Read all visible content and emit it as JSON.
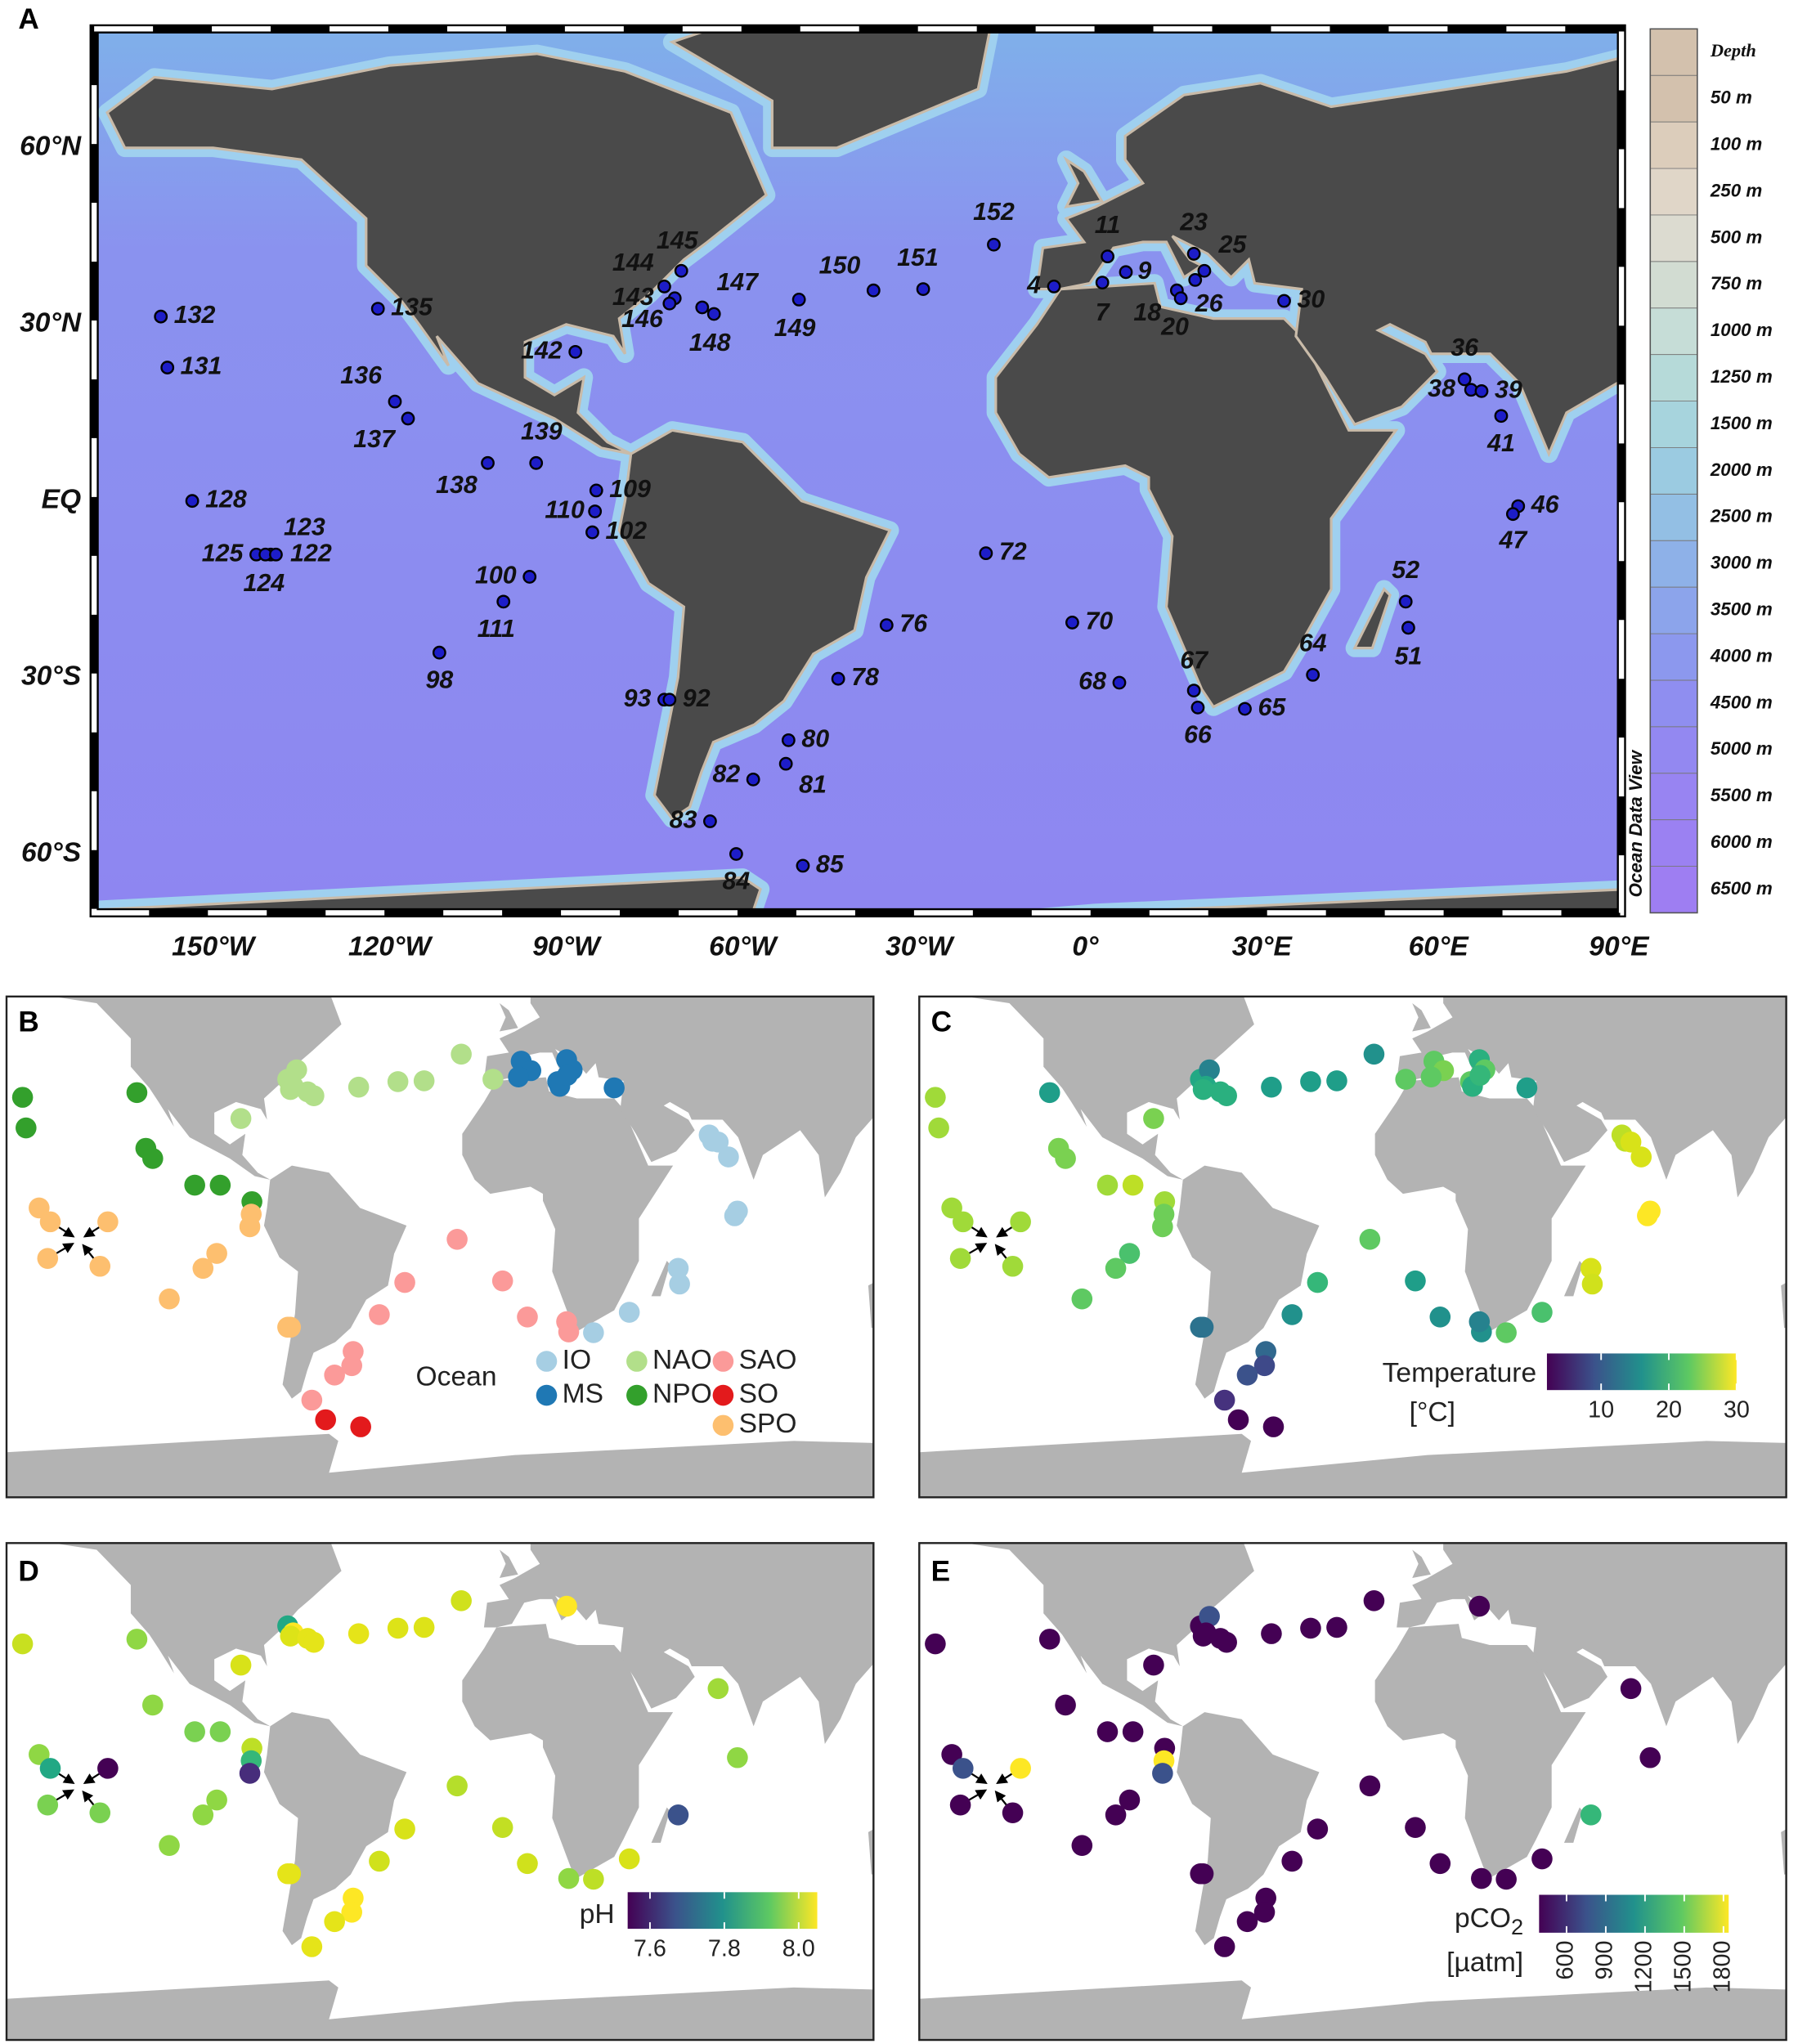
{
  "panel_labels": [
    "A",
    "B",
    "C",
    "D",
    "E"
  ],
  "map_a": {
    "lat_labels": [
      "60°N",
      "30°N",
      "EQ",
      "30°S",
      "60°S"
    ],
    "lon_labels": [
      "150°W",
      "120°W",
      "90°W",
      "60°W",
      "30°W",
      "0°",
      "30°E",
      "60°E",
      "90°E"
    ],
    "credit": "Ocean Data View",
    "depth_legend": {
      "title": "Depth",
      "labels": [
        "50 m",
        "100 m",
        "250 m",
        "500 m",
        "750 m",
        "1000 m",
        "1250 m",
        "1500 m",
        "2000 m",
        "2500 m",
        "3000 m",
        "3500 m",
        "4000 m",
        "4500 m",
        "5000 m",
        "5500 m",
        "6000 m",
        "6500 m"
      ],
      "colors": [
        "#d3c1ad",
        "#dccdbb",
        "#e0d6c8",
        "#dcdbd0",
        "#d2dcd2",
        "#c6ddd7",
        "#b6dad9",
        "#a7d4dd",
        "#9bcbe1",
        "#93bfe4",
        "#8eb1e8",
        "#8ca4eb",
        "#8c98ee",
        "#8f8ef0",
        "#9388f1",
        "#9884f2",
        "#9b81f2",
        "#9e7ef2"
      ]
    }
  },
  "stations": [
    "132",
    "131",
    "135",
    "136",
    "137",
    "142",
    "139",
    "138",
    "128",
    "125",
    "123",
    "124",
    "122",
    "100",
    "111",
    "98",
    "109",
    "110",
    "102",
    "144",
    "145",
    "143",
    "146",
    "147",
    "148",
    "149",
    "150",
    "151",
    "152",
    "4",
    "11",
    "9",
    "7",
    "23",
    "25",
    "18",
    "20",
    "26",
    "30",
    "36",
    "38",
    "39",
    "41",
    "46",
    "47",
    "52",
    "51",
    "64",
    "65",
    "66",
    "67",
    "68",
    "70",
    "72",
    "76",
    "78",
    "80",
    "81",
    "82",
    "83",
    "84",
    "85",
    "93",
    "92"
  ],
  "panel_b": {
    "legend_title": "Ocean",
    "legend": [
      {
        "name": "IO",
        "color": "#a6cee3"
      },
      {
        "name": "MS",
        "color": "#1f78b4"
      },
      {
        "name": "NAO",
        "color": "#b2df8a"
      },
      {
        "name": "NPO",
        "color": "#33a02c"
      },
      {
        "name": "SAO",
        "color": "#fb9a99"
      },
      {
        "name": "SO",
        "color": "#e31a1c"
      },
      {
        "name": "SPO",
        "color": "#fdbf6f"
      }
    ],
    "station_colors": [
      "#33a02c",
      "#33a02c",
      "#33a02c",
      "#33a02c",
      "#33a02c",
      "#b2df8a",
      "#33a02c",
      "#33a02c",
      "#fdbf6f",
      "#fdbf6f",
      "#fdbf6f",
      "#fdbf6f",
      "#fdbf6f",
      "#fdbf6f",
      "#fdbf6f",
      "#fdbf6f",
      "#33a02c",
      "#fdbf6f",
      "#fdbf6f",
      "#b2df8a",
      "#b2df8a",
      "#b2df8a",
      "#b2df8a",
      "#b2df8a",
      "#b2df8a",
      "#b2df8a",
      "#b2df8a",
      "#b2df8a",
      "#b2df8a",
      "#b2df8a",
      "#1f78b4",
      "#1f78b4",
      "#1f78b4",
      "#1f78b4",
      "#1f78b4",
      "#1f78b4",
      "#1f78b4",
      "#1f78b4",
      "#1f78b4",
      "#a6cee3",
      "#a6cee3",
      "#a6cee3",
      "#a6cee3",
      "#a6cee3",
      "#a6cee3",
      "#a6cee3",
      "#a6cee3",
      "#a6cee3",
      "#a6cee3",
      "#fb9a99",
      "#fb9a99",
      "#fb9a99",
      "#fb9a99",
      "#fb9a99",
      "#fb9a99",
      "#fb9a99",
      "#fb9a99",
      "#fb9a99",
      "#fb9a99",
      "#fb9a99",
      "#e31a1c",
      "#e31a1c",
      "#fdbf6f",
      "#fdbf6f"
    ]
  },
  "panel_c": {
    "title": "Temperature",
    "unit": "[°C]",
    "colormap": [
      "#440154",
      "#3b528b",
      "#21918c",
      "#5ec962",
      "#fde725"
    ],
    "lim": [
      2,
      30
    ],
    "ticks": [
      10,
      20,
      30
    ],
    "station_colors": [
      "#a0da39",
      "#a0da39",
      "#1f9e89",
      "#7ad151",
      "#7ad151",
      "#7ad151",
      "#bddf26",
      "#a0da39",
      "#a0da39",
      "#a0da39",
      "#a0da39",
      "#a0da39",
      "#a0da39",
      "#4ac16d",
      "#5ec962",
      "#5ec962",
      "#a0da39",
      "#6ece58",
      "#6ece58",
      "#22a884",
      "#26828e",
      "#22a884",
      "#2ab07f",
      "#2ab07f",
      "#2ab07f",
      "#1f9e89",
      "#1f9e89",
      "#1f9e89",
      "#21918c",
      "#5ec962",
      "#5ec962",
      "#7ad151",
      "#5ec962",
      "#2ab07f",
      "#5ec962",
      "#5ec962",
      "#2ab07f",
      "#35b779",
      "#1f9e89",
      "#bddf26",
      "#bddf26",
      "#d8e219",
      "#d8e219",
      "#fde725",
      "#fde725",
      "#d8e219",
      "#d0e11c",
      "#4ac16d",
      "#5ec962",
      "#21918c",
      "#26828e",
      "#21918c",
      "#1f9e89",
      "#5ec962",
      "#35b779",
      "#21918c",
      "#31688e",
      "#3e4989",
      "#3b528b",
      "#46327e",
      "#440154",
      "#440154",
      "#2c728e",
      "#2c728e"
    ]
  },
  "panel_d": {
    "title": "pH",
    "colormap": [
      "#440154",
      "#3b528b",
      "#21918c",
      "#5ec962",
      "#fde725"
    ],
    "lim": [
      7.54,
      8.05
    ],
    "ticks": [
      7.6,
      7.8,
      {
        "value": 8,
        "label": "8.0"
      }
    ],
    "station_colors": [
      "#c8e020",
      null,
      "#8fd744",
      null,
      "#8fd744",
      "#d8e219",
      "#7ad151",
      "#7ad151",
      "#8fd744",
      "#22a884",
      "#440154",
      "#7ad151",
      "#7ad151",
      "#8fd744",
      "#8fd744",
      "#8fd744",
      "#bddf26",
      "#35b779",
      "#472d7b",
      "#22a884",
      null,
      "#fde725",
      "#dde318",
      "#e5e419",
      "#e5e419",
      "#e5e419",
      "#dde318",
      "#dde318",
      "#d0e11c",
      null,
      null,
      null,
      null,
      "#fde725",
      null,
      null,
      null,
      null,
      null,
      null,
      null,
      "#a0da39",
      null,
      "#8fd744",
      null,
      "#3b528b",
      null,
      "#d8e219",
      "#bddf26",
      "#8fd744",
      null,
      "#d0e11c",
      "#c2df23",
      "#b5de2b",
      "#d8e219",
      "#d0e11c",
      "#fde725",
      "#fde725",
      "#e5e419",
      "#e5e419",
      null,
      null,
      "#e5e419",
      "#e5e419"
    ]
  },
  "panel_e": {
    "title": "pCO",
    "title_sub": "2",
    "unit": "[µatm]",
    "colormap": [
      "#440154",
      "#3b528b",
      "#21918c",
      "#5ec962",
      "#fde725"
    ],
    "lim": [
      390,
      1840
    ],
    "ticks": [
      600,
      900,
      1200,
      1500,
      1800
    ],
    "station_colors": [
      "#440154",
      null,
      "#440154",
      null,
      "#440154",
      "#440154",
      "#440154",
      "#440154",
      "#440154",
      "#3b528b",
      "#fde725",
      "#440154",
      "#440154",
      "#440154",
      "#440154",
      "#440154",
      "#440154",
      "#fde725",
      "#3b528b",
      "#440154",
      "#3b528b",
      "#440154",
      "#440154",
      "#440154",
      "#440154",
      "#440154",
      "#440154",
      "#440154",
      "#440154",
      null,
      null,
      null,
      null,
      "#440154",
      null,
      null,
      null,
      null,
      null,
      null,
      null,
      "#440154",
      null,
      "#440154",
      null,
      "#35b779",
      null,
      "#440154",
      "#440154",
      "#440154",
      null,
      "#440154",
      "#440154",
      "#440154",
      "#440154",
      "#440154",
      "#440154",
      "#440154",
      "#440154",
      "#440154",
      null,
      null,
      "#440154",
      "#440154"
    ]
  }
}
